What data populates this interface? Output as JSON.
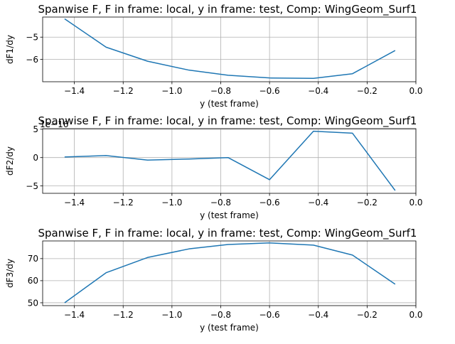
{
  "chart_data": [
    {
      "type": "line",
      "title": "Spanwise F, F in frame: local, y in frame: test, Comp: WingGeom_Surf1",
      "xlabel": "y (test frame)",
      "ylabel": "dF1/dy",
      "xlim": [
        -1.53,
        0.0
      ],
      "ylim": [
        -7.0,
        -4.1
      ],
      "xticks": [
        -1.4,
        -1.2,
        -1.0,
        -0.8,
        -0.6,
        -0.4,
        -0.2,
        0.0
      ],
      "xtick_labels": [
        "−1.4",
        "−1.2",
        "−1.0",
        "−0.8",
        "−0.6",
        "−0.4",
        "−0.2",
        "0.0"
      ],
      "yticks": [
        -6,
        -5
      ],
      "ytick_labels": [
        "−6",
        "−5"
      ],
      "grid": true,
      "color": "#1f77b4",
      "offset_text": "",
      "x": [
        -1.44,
        -1.27,
        -1.1,
        -0.93,
        -0.77,
        -0.6,
        -0.42,
        -0.26,
        -0.085
      ],
      "y": [
        -4.18,
        -5.45,
        -6.08,
        -6.48,
        -6.71,
        -6.83,
        -6.85,
        -6.64,
        -5.6
      ]
    },
    {
      "type": "line",
      "title": "Spanwise F, F in frame: local, y in frame: test, Comp: WingGeom_Surf1",
      "xlabel": "y (test frame)",
      "ylabel": "dF2/dy",
      "xlim": [
        -1.53,
        0.0
      ],
      "ylim": [
        -6.3,
        5.1
      ],
      "xticks": [
        -1.4,
        -1.2,
        -1.0,
        -0.8,
        -0.6,
        -0.4,
        -0.2,
        0.0
      ],
      "xtick_labels": [
        "−1.4",
        "−1.2",
        "−1.0",
        "−0.8",
        "−0.6",
        "−0.4",
        "−0.2",
        "0.0"
      ],
      "yticks": [
        -5,
        0,
        5
      ],
      "ytick_labels": [
        "−5",
        "0",
        "5"
      ],
      "grid": true,
      "color": "#1f77b4",
      "offset_text": "1e−16",
      "x": [
        -1.44,
        -1.27,
        -1.1,
        -0.93,
        -0.77,
        -0.6,
        -0.42,
        -0.26,
        -0.085
      ],
      "y": [
        0.1,
        0.35,
        -0.45,
        -0.25,
        0.0,
        -3.9,
        4.65,
        4.3,
        -5.8
      ]
    },
    {
      "type": "line",
      "title": "Spanwise F, F in frame: local, y in frame: test, Comp: WingGeom_Surf1",
      "xlabel": "y (test frame)",
      "ylabel": "dF3/dy",
      "xlim": [
        -1.53,
        0.0
      ],
      "ylim": [
        48.7,
        78.0
      ],
      "xticks": [
        -1.4,
        -1.2,
        -1.0,
        -0.8,
        -0.6,
        -0.4,
        -0.2,
        0.0
      ],
      "xtick_labels": [
        "−1.4",
        "−1.2",
        "−1.0",
        "−0.8",
        "−0.6",
        "−0.4",
        "−0.2",
        "0.0"
      ],
      "yticks": [
        50,
        60,
        70
      ],
      "ytick_labels": [
        "50",
        "60",
        "70"
      ],
      "grid": true,
      "color": "#1f77b4",
      "offset_text": "",
      "x": [
        -1.44,
        -1.27,
        -1.1,
        -0.93,
        -0.77,
        -0.6,
        -0.42,
        -0.26,
        -0.085
      ],
      "y": [
        50.0,
        63.6,
        70.5,
        74.4,
        76.4,
        77.1,
        76.1,
        71.6,
        58.4
      ]
    }
  ]
}
